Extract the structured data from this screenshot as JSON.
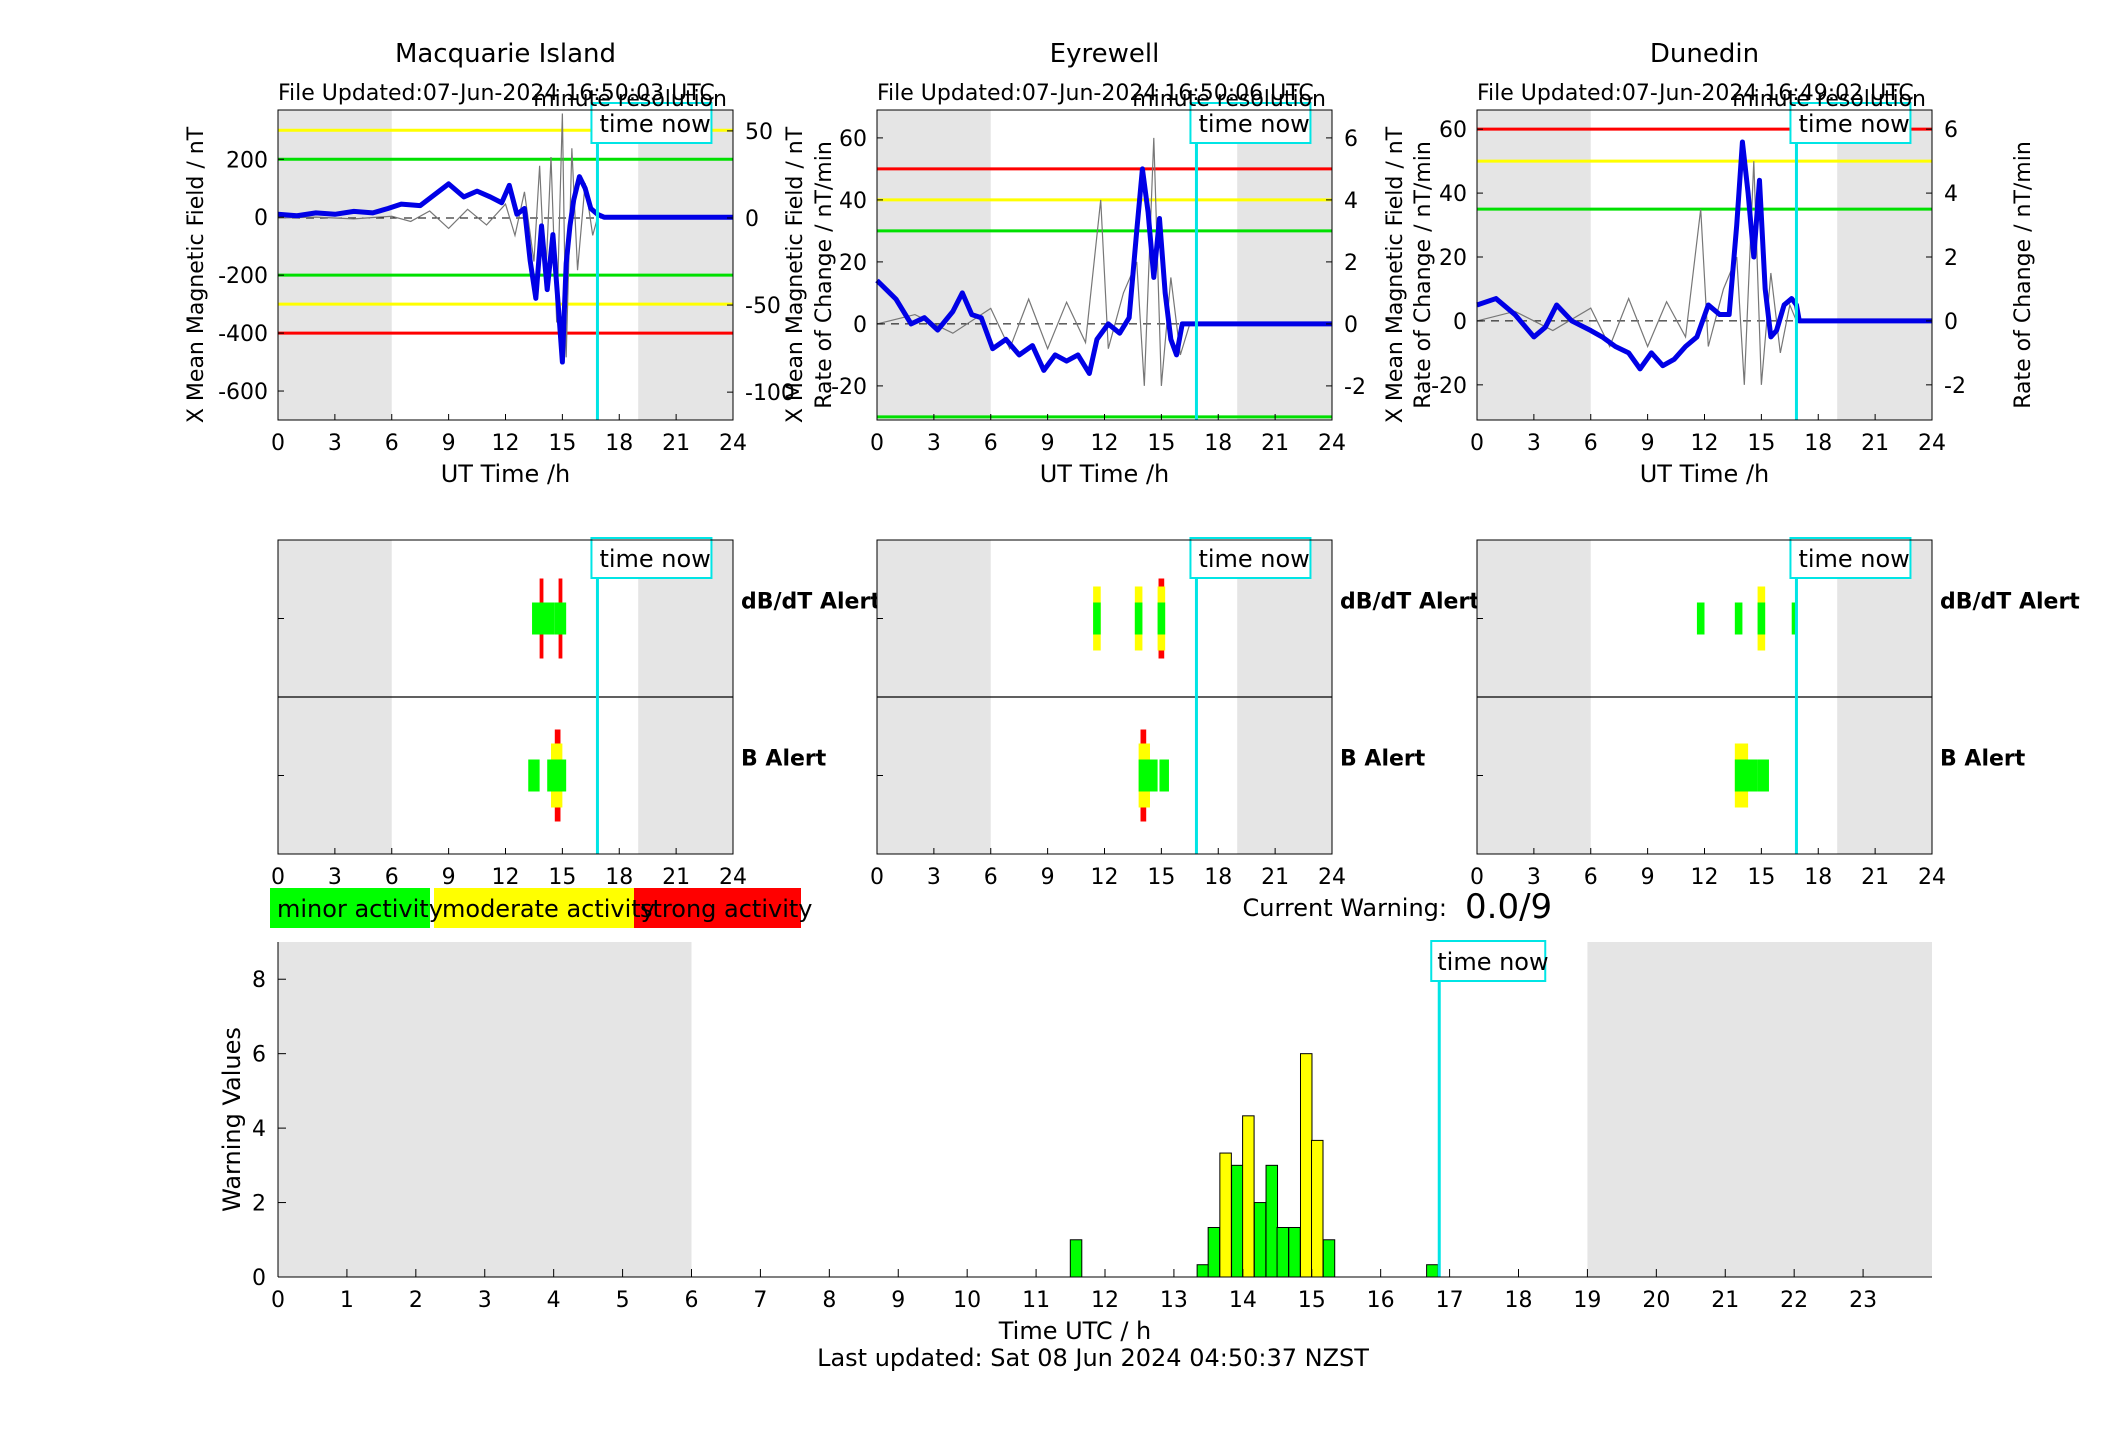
{
  "stations": [
    {
      "title": "Macquarie Island",
      "file_updated": "File Updated:07-Jun-2024 16:50:03 UTC",
      "resolution": "minute resolution",
      "time_now_label": "time now",
      "ylabel_left": "X Mean Magnetic Field / nT",
      "ylabel_right": "Rate of Change / nT/min",
      "xlabel": "UT Time /h",
      "xticks": [
        0,
        3,
        6,
        9,
        12,
        15,
        18,
        21,
        24
      ],
      "yticks_left": [
        -600,
        -400,
        -200,
        0,
        200
      ],
      "yticks_right": [
        -100,
        -50,
        0,
        50
      ],
      "ylim_left": [
        -700,
        370
      ],
      "ylim_right": [
        -116,
        62
      ],
      "thresholds": [
        {
          "value": 300,
          "color": "#ffff00"
        },
        {
          "value": 200,
          "color": "#00e000"
        },
        {
          "value": -200,
          "color": "#00e000"
        },
        {
          "value": -300,
          "color": "#ffff00"
        },
        {
          "value": -400,
          "color": "#ff0000"
        }
      ],
      "time_now": 16.85,
      "mean_field": [
        [
          0,
          10
        ],
        [
          1,
          5
        ],
        [
          2,
          15
        ],
        [
          3,
          10
        ],
        [
          4,
          20
        ],
        [
          5,
          15
        ],
        [
          5.8,
          30
        ],
        [
          6.5,
          45
        ],
        [
          7.5,
          40
        ],
        [
          8.5,
          90
        ],
        [
          9,
          115
        ],
        [
          9.8,
          70
        ],
        [
          10.5,
          90
        ],
        [
          11.2,
          70
        ],
        [
          11.8,
          50
        ],
        [
          12.2,
          110
        ],
        [
          12.6,
          10
        ],
        [
          13,
          30
        ],
        [
          13.3,
          -150
        ],
        [
          13.6,
          -280
        ],
        [
          13.9,
          -30
        ],
        [
          14.2,
          -250
        ],
        [
          14.5,
          -60
        ],
        [
          14.8,
          -320
        ],
        [
          15.0,
          -500
        ],
        [
          15.2,
          -160
        ],
        [
          15.4,
          -30
        ],
        [
          15.6,
          60
        ],
        [
          15.9,
          140
        ],
        [
          16.2,
          100
        ],
        [
          16.5,
          30
        ],
        [
          16.85,
          10
        ],
        [
          17.2,
          0
        ],
        [
          24,
          0
        ]
      ],
      "rate_of_change": [
        [
          0,
          0
        ],
        [
          2,
          0.5
        ],
        [
          4,
          -0.5
        ],
        [
          6,
          1
        ],
        [
          7,
          -2
        ],
        [
          8,
          4
        ],
        [
          9,
          -6
        ],
        [
          10,
          5
        ],
        [
          11,
          -4
        ],
        [
          12,
          8
        ],
        [
          12.5,
          -10
        ],
        [
          13,
          15
        ],
        [
          13.5,
          -25
        ],
        [
          13.8,
          30
        ],
        [
          14.1,
          -40
        ],
        [
          14.4,
          35
        ],
        [
          14.7,
          -60
        ],
        [
          15.0,
          60
        ],
        [
          15.2,
          -80
        ],
        [
          15.5,
          40
        ],
        [
          15.8,
          -30
        ],
        [
          16.2,
          20
        ],
        [
          16.6,
          -10
        ],
        [
          16.85,
          0
        ]
      ],
      "ddt_alert_bars": [
        {
          "t0": 13.2,
          "t1": 14.6,
          "color": "#ffff00"
        },
        {
          "t0": 14.6,
          "t1": 15.4,
          "color": "#ffff00"
        }
      ],
      "ddt_alert_bars_green": [
        [
          13.4,
          14.6
        ],
        [
          14.6,
          15.2
        ]
      ],
      "ddt_alert_bars_red": [
        [
          13.8,
          14.0
        ],
        [
          14.8,
          15.0
        ]
      ],
      "b_alert_bars_green": [
        [
          13.2,
          13.8
        ],
        [
          14.2,
          15.2
        ]
      ],
      "b_alert_bars_yellow": [
        [
          14.4,
          15.0
        ]
      ],
      "b_alert_bars_red": [
        [
          14.6,
          14.9
        ]
      ],
      "ddt_label": "dB/dT Alert",
      "b_label": "B Alert"
    },
    {
      "title": "Eyrewell",
      "file_updated": "File Updated:07-Jun-2024 16:50:06 UTC",
      "resolution": "minute resolution",
      "time_now_label": "time now",
      "ylabel_left": "X Mean Magnetic Field / nT",
      "ylabel_right": "Rate of Change / nT/min",
      "xlabel": "UT Time /h",
      "xticks": [
        0,
        3,
        6,
        9,
        12,
        15,
        18,
        21,
        24
      ],
      "yticks_left": [
        -20,
        0,
        20,
        40,
        60
      ],
      "yticks_right": [
        -2,
        0,
        2,
        4,
        6
      ],
      "ylim_left": [
        -31,
        69
      ],
      "ylim_right": [
        -3.1,
        6.9
      ],
      "thresholds": [
        {
          "value": 50,
          "color": "#ff0000"
        },
        {
          "value": 40,
          "color": "#ffff00"
        },
        {
          "value": 30,
          "color": "#00e000"
        },
        {
          "value": -30,
          "color": "#00e000"
        }
      ],
      "time_now": 16.85,
      "mean_field": [
        [
          0,
          14
        ],
        [
          1,
          8
        ],
        [
          1.8,
          0
        ],
        [
          2.5,
          2
        ],
        [
          3.2,
          -2
        ],
        [
          4,
          4
        ],
        [
          4.5,
          10
        ],
        [
          5,
          3
        ],
        [
          5.5,
          2
        ],
        [
          6.1,
          -8
        ],
        [
          6.8,
          -5
        ],
        [
          7.5,
          -10
        ],
        [
          8.2,
          -7
        ],
        [
          8.8,
          -15
        ],
        [
          9.4,
          -10
        ],
        [
          10,
          -12
        ],
        [
          10.6,
          -10
        ],
        [
          11.2,
          -16
        ],
        [
          11.6,
          -5
        ],
        [
          12.2,
          0
        ],
        [
          12.8,
          -3
        ],
        [
          13.3,
          2
        ],
        [
          13.7,
          30
        ],
        [
          14.0,
          50
        ],
        [
          14.3,
          36
        ],
        [
          14.6,
          15
        ],
        [
          14.9,
          34
        ],
        [
          15.2,
          10
        ],
        [
          15.5,
          -5
        ],
        [
          15.8,
          -10
        ],
        [
          16.1,
          0
        ],
        [
          16.5,
          0
        ],
        [
          24,
          0
        ]
      ],
      "rate_of_change": [
        [
          0,
          0
        ],
        [
          2,
          0.3
        ],
        [
          4,
          -0.3
        ],
        [
          6,
          0.5
        ],
        [
          7,
          -0.8
        ],
        [
          8,
          0.8
        ],
        [
          9,
          -0.8
        ],
        [
          10,
          0.7
        ],
        [
          11,
          -0.6
        ],
        [
          11.8,
          4
        ],
        [
          12.2,
          -0.8
        ],
        [
          13,
          1
        ],
        [
          13.7,
          2
        ],
        [
          14.1,
          -2
        ],
        [
          14.6,
          6
        ],
        [
          15.0,
          -2
        ],
        [
          15.5,
          1.5
        ],
        [
          16,
          -1
        ],
        [
          16.5,
          0
        ]
      ],
      "ddt_alert_bars_green": [
        [
          11.4,
          11.8
        ],
        [
          13.6,
          14.0
        ],
        [
          14.8,
          15.2
        ]
      ],
      "ddt_alert_bars_yellow": [
        [
          11.4,
          11.8
        ],
        [
          13.6,
          14.0
        ],
        [
          14.8,
          15.2
        ]
      ],
      "ddt_alert_bars_red": [
        [
          14.85,
          15.15
        ]
      ],
      "b_alert_bars_green": [
        [
          13.8,
          14.8
        ],
        [
          14.9,
          15.4
        ]
      ],
      "b_alert_bars_yellow": [
        [
          13.8,
          14.4
        ]
      ],
      "b_alert_bars_red": [
        [
          13.9,
          14.2
        ]
      ],
      "ddt_label": "dB/dT Alert",
      "b_label": "B Alert"
    },
    {
      "title": "Dunedin",
      "file_updated": "File Updated:07-Jun-2024 16:49:02 UTC",
      "resolution": "minute resolution",
      "time_now_label": "time now",
      "ylabel_left": "X Mean Magnetic Field / nT",
      "ylabel_right": "Rate of Change / nT/min",
      "xlabel": "UT Time /h",
      "xticks": [
        0,
        3,
        6,
        9,
        12,
        15,
        18,
        21,
        24
      ],
      "yticks_left": [
        -20,
        0,
        20,
        40,
        60
      ],
      "yticks_right": [
        -2,
        0,
        2,
        4,
        6
      ],
      "ylim_left": [
        -31,
        66
      ],
      "ylim_right": [
        -3.1,
        6.6
      ],
      "thresholds": [
        {
          "value": 60,
          "color": "#ff0000"
        },
        {
          "value": 50,
          "color": "#ffff00"
        },
        {
          "value": 35,
          "color": "#00e000"
        }
      ],
      "time_now": 16.85,
      "mean_field": [
        [
          0,
          5
        ],
        [
          1,
          7
        ],
        [
          2,
          2
        ],
        [
          3,
          -5
        ],
        [
          3.6,
          -2
        ],
        [
          4.2,
          5
        ],
        [
          5,
          0
        ],
        [
          6,
          -3
        ],
        [
          6.6,
          -5
        ],
        [
          7.3,
          -8
        ],
        [
          8,
          -10
        ],
        [
          8.6,
          -15
        ],
        [
          9.2,
          -10
        ],
        [
          9.8,
          -14
        ],
        [
          10.4,
          -12
        ],
        [
          11,
          -8
        ],
        [
          11.6,
          -5
        ],
        [
          12.2,
          5
        ],
        [
          12.8,
          2
        ],
        [
          13.3,
          2
        ],
        [
          13.7,
          30
        ],
        [
          14.0,
          56
        ],
        [
          14.3,
          40
        ],
        [
          14.6,
          20
        ],
        [
          14.9,
          44
        ],
        [
          15.2,
          10
        ],
        [
          15.5,
          -5
        ],
        [
          15.8,
          -3
        ],
        [
          16.2,
          5
        ],
        [
          16.6,
          7
        ],
        [
          16.85,
          5
        ],
        [
          17,
          0
        ],
        [
          24,
          0
        ]
      ],
      "rate_of_change": [
        [
          0,
          0
        ],
        [
          2,
          0.3
        ],
        [
          4,
          -0.3
        ],
        [
          6,
          0.4
        ],
        [
          7,
          -0.8
        ],
        [
          8,
          0.7
        ],
        [
          9,
          -0.8
        ],
        [
          10,
          0.6
        ],
        [
          11,
          -0.5
        ],
        [
          11.8,
          3.5
        ],
        [
          12.2,
          -0.8
        ],
        [
          13,
          1
        ],
        [
          13.7,
          2
        ],
        [
          14.1,
          -2
        ],
        [
          14.6,
          5
        ],
        [
          15.0,
          -2
        ],
        [
          15.5,
          1.5
        ],
        [
          16,
          -1
        ],
        [
          16.5,
          0.5
        ],
        [
          16.85,
          0
        ]
      ],
      "ddt_alert_bars_green": [
        [
          11.6,
          12.0
        ],
        [
          13.6,
          14.0
        ],
        [
          14.8,
          15.2
        ],
        [
          16.6,
          16.9
        ]
      ],
      "ddt_alert_bars_yellow": [
        [
          14.8,
          15.2
        ]
      ],
      "ddt_alert_bars_red": [],
      "b_alert_bars_green": [
        [
          13.6,
          14.8
        ],
        [
          14.8,
          15.4
        ]
      ],
      "b_alert_bars_yellow": [
        [
          13.6,
          14.3
        ]
      ],
      "b_alert_bars_red": [],
      "ddt_label": "dB/dT Alert",
      "b_label": "B Alert"
    }
  ],
  "legend": [
    {
      "label": "minor activity",
      "color": "#00ff00"
    },
    {
      "label": "moderate activity",
      "color": "#ffff00"
    },
    {
      "label": "strong activity",
      "color": "#ff0000"
    }
  ],
  "current_warning_label": "Current Warning:",
  "current_warning_value": "0.0/9",
  "chart_data": {
    "type": "bar",
    "xlabel": "Time UTC / h",
    "ylabel": "Warning Values",
    "xlim": [
      0,
      24
    ],
    "ylim": [
      0,
      9
    ],
    "xticks": [
      0,
      1,
      2,
      3,
      4,
      5,
      6,
      7,
      8,
      9,
      10,
      11,
      12,
      13,
      14,
      15,
      16,
      17,
      18,
      19,
      20,
      21,
      22,
      23
    ],
    "yticks": [
      0,
      2,
      4,
      6,
      8
    ],
    "time_now": 16.85,
    "time_now_label": "time now",
    "night_shading": [
      [
        0,
        6
      ],
      [
        19,
        24
      ]
    ],
    "bars": [
      {
        "t": 11.58,
        "value": 1,
        "color": "#00ff00"
      },
      {
        "t": 13.42,
        "value": 0.33,
        "color": "#00ff00"
      },
      {
        "t": 13.58,
        "value": 1.33,
        "color": "#00ff00"
      },
      {
        "t": 13.75,
        "value": 3.33,
        "color": "#ffff00"
      },
      {
        "t": 13.92,
        "value": 3,
        "color": "#00ff00"
      },
      {
        "t": 14.08,
        "value": 4.33,
        "color": "#ffff00"
      },
      {
        "t": 14.25,
        "value": 2,
        "color": "#00ff00"
      },
      {
        "t": 14.42,
        "value": 3,
        "color": "#00ff00"
      },
      {
        "t": 14.58,
        "value": 1.33,
        "color": "#00ff00"
      },
      {
        "t": 14.75,
        "value": 1.33,
        "color": "#00ff00"
      },
      {
        "t": 14.92,
        "value": 6,
        "color": "#ffff00"
      },
      {
        "t": 15.08,
        "value": 3.67,
        "color": "#ffff00"
      },
      {
        "t": 15.25,
        "value": 1,
        "color": "#00ff00"
      },
      {
        "t": 16.75,
        "value": 0.33,
        "color": "#00ff00"
      }
    ]
  },
  "last_updated": "Last updated: Sat 08 Jun 2024 04:50:37 NZST"
}
